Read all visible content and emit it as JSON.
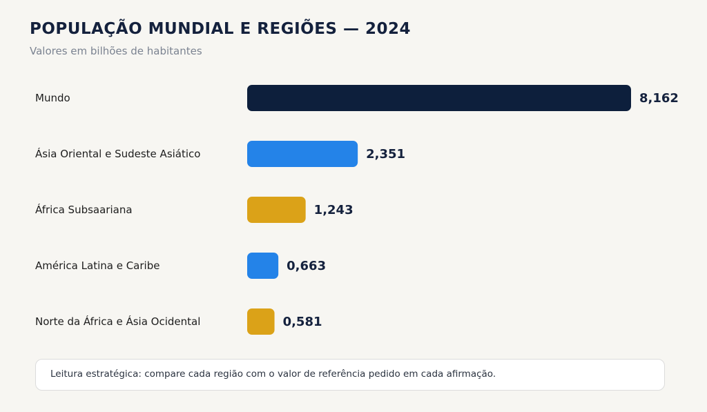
{
  "header": {
    "title": "POPULAÇÃO MUNDIAL E REGIÕES — 2024",
    "subtitle": "Valores em bilhões de habitantes"
  },
  "chart_data": {
    "type": "bar",
    "orientation": "horizontal",
    "title": "POPULAÇÃO MUNDIAL E REGIÕES — 2024",
    "subtitle": "Valores em bilhões de habitantes",
    "categories": [
      "Mundo",
      "Ásia Oriental e Sudeste Asiático",
      "África Subsaariana",
      "América Latina e Caribe",
      "Norte da África e Ásia Ocidental"
    ],
    "values": [
      8.162,
      2.351,
      1.243,
      0.663,
      0.581
    ],
    "value_labels": [
      "8,162",
      "2,351",
      "1,243",
      "0,663",
      "0,581"
    ],
    "bar_colors": [
      "#0d1f3c",
      "#2483e8",
      "#dba218",
      "#2483e8",
      "#dba218"
    ],
    "xlim": [
      0,
      8.162
    ],
    "grid": false,
    "legend": "none"
  },
  "note": {
    "text": "Leitura estratégica: compare cada região com o valor de referência pedido em cada afirmação."
  },
  "colors": {
    "background": "#f7f6f2",
    "title": "#14213d",
    "subtitle": "#7b8391"
  }
}
